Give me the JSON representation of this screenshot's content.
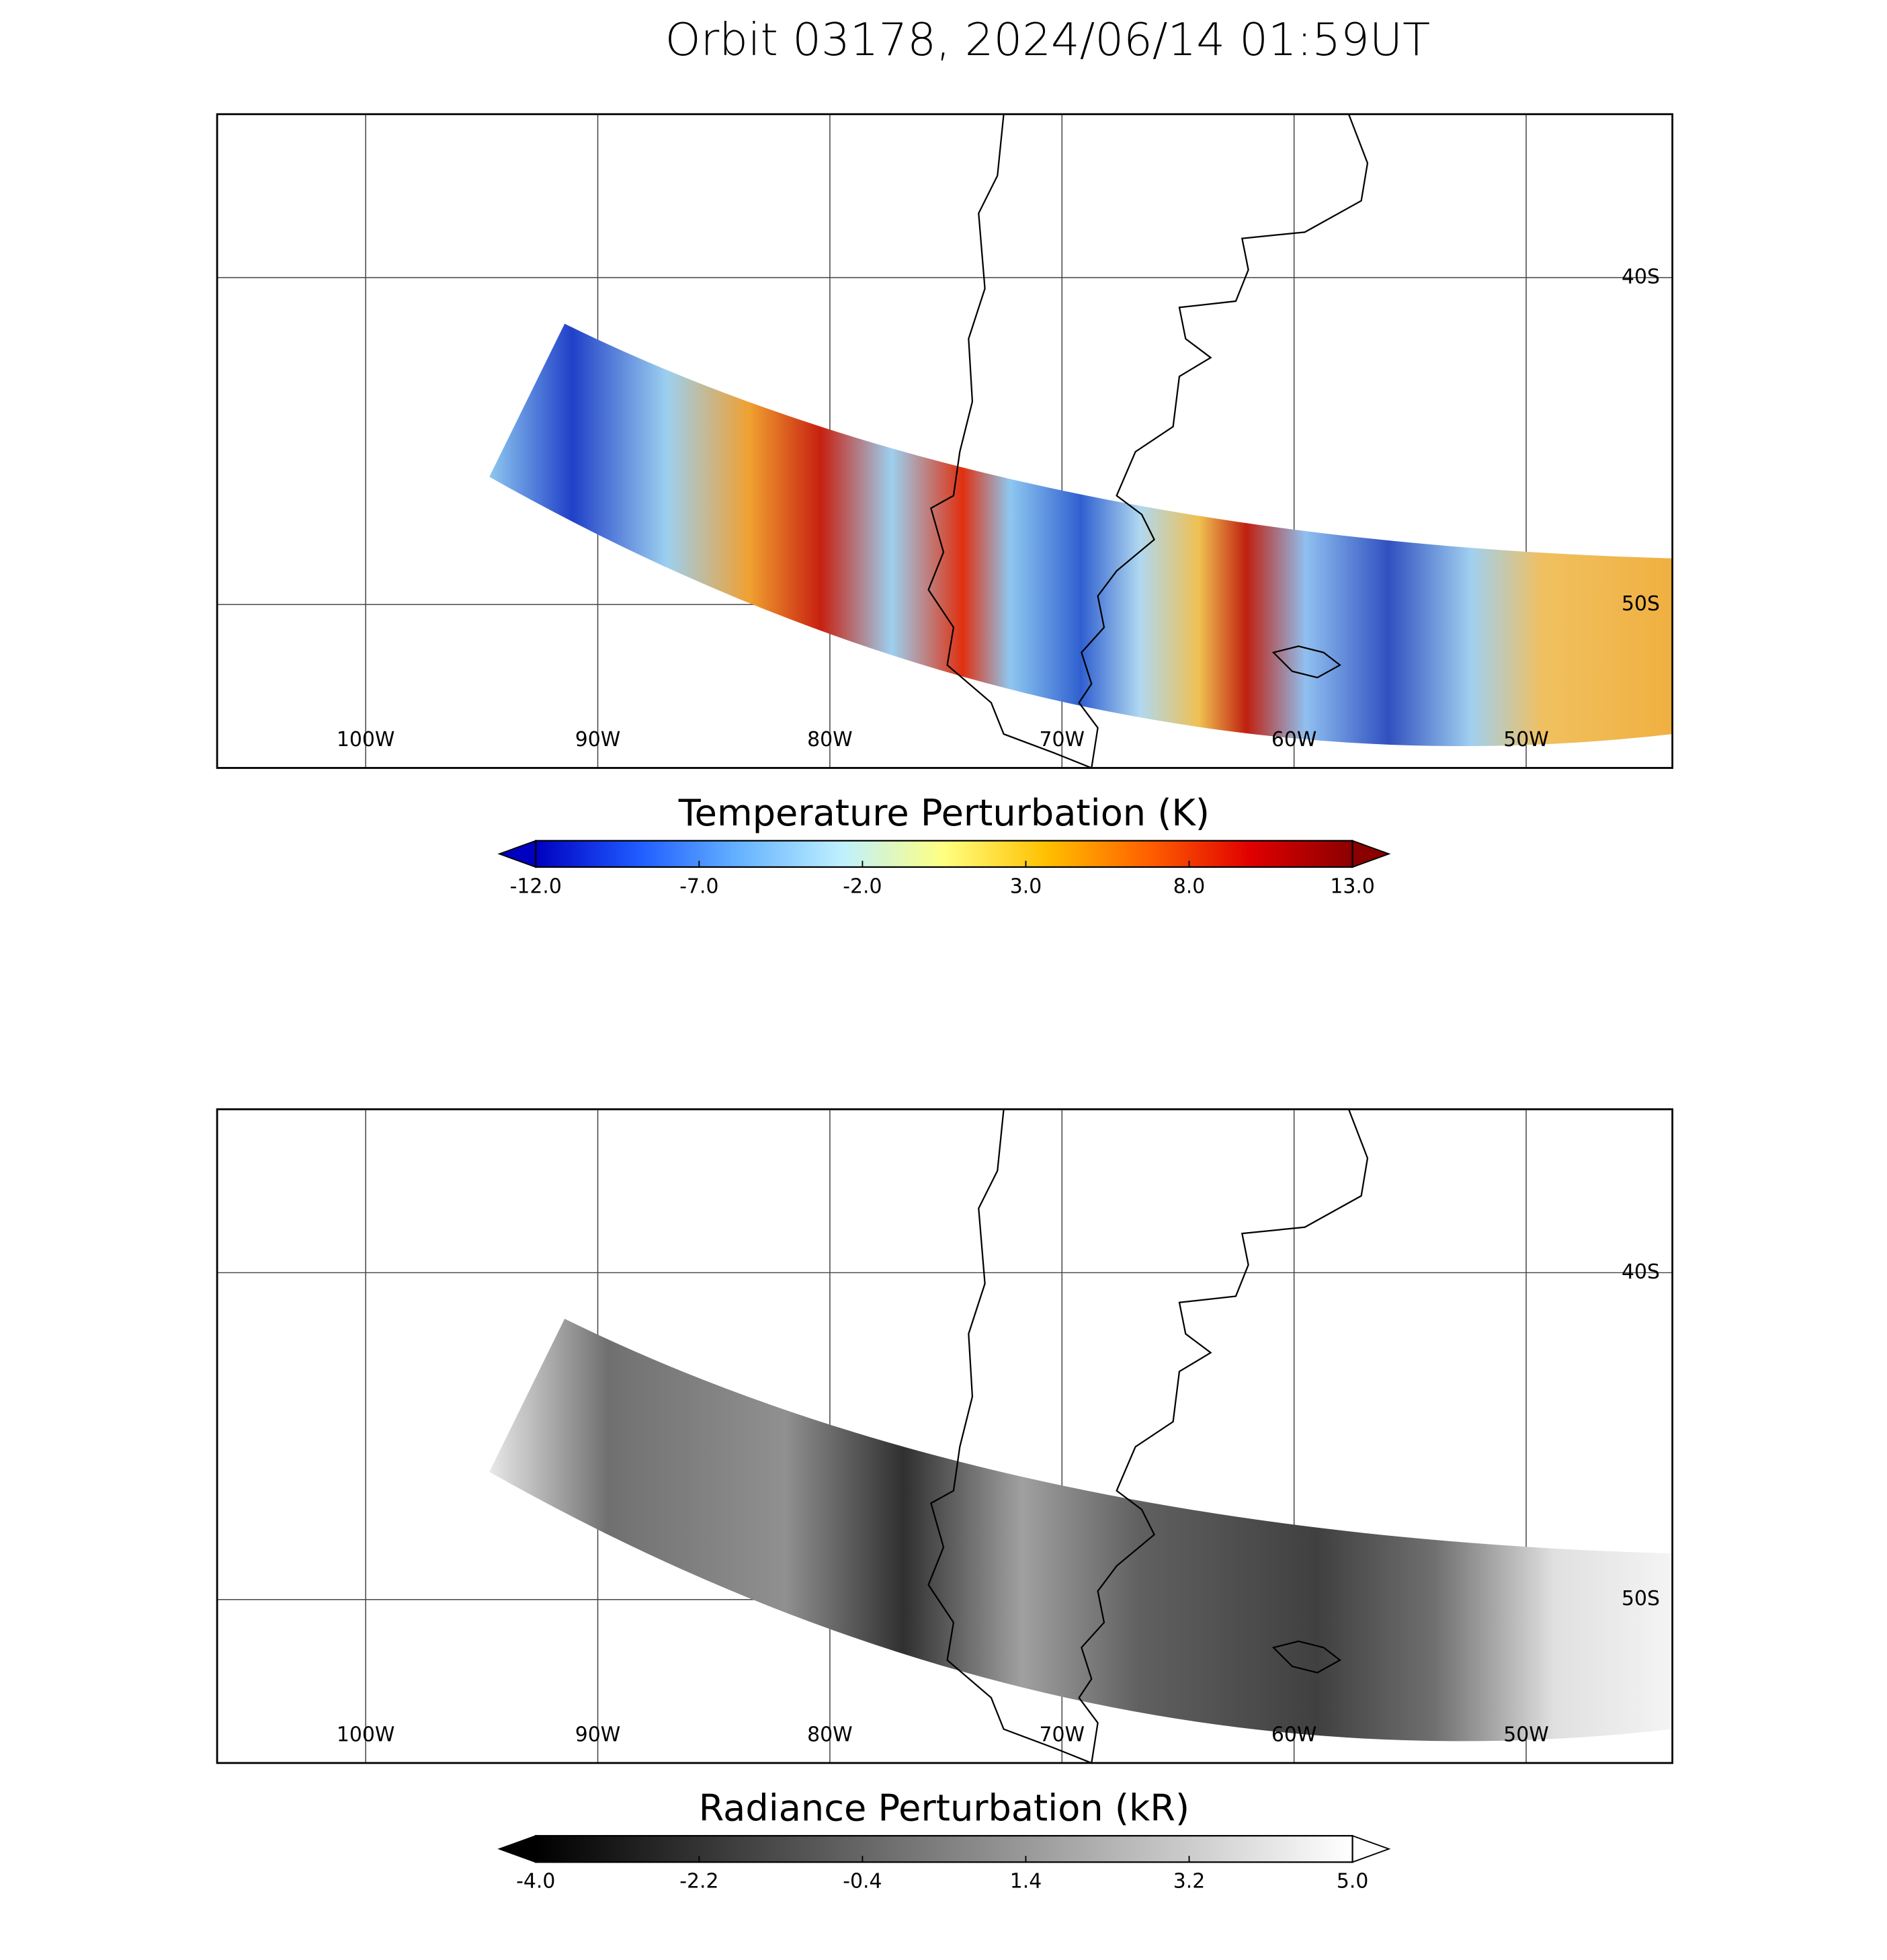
{
  "title": "Orbit 03178, 2024/06/14 01:59UT",
  "panels": [
    {
      "lon_range": [
        -106.4,
        -43.7
      ],
      "lat_range": [
        -55,
        -35
      ],
      "lon_ticks": [
        {
          "value": -100,
          "label": "100W"
        },
        {
          "value": -90,
          "label": "90W"
        },
        {
          "value": -80,
          "label": "80W"
        },
        {
          "value": -70,
          "label": "70W"
        },
        {
          "value": -60,
          "label": "60W"
        },
        {
          "value": -50,
          "label": "50W"
        }
      ],
      "lat_ticks": [
        {
          "value": -40,
          "label": "40S"
        },
        {
          "value": -50,
          "label": "50S"
        }
      ],
      "colorbar": {
        "title": "Temperature Perturbation (K)",
        "range": [
          -12,
          13
        ],
        "colors": [
          "#0000c0",
          "#1f5bff",
          "#66b3ff",
          "#bff0ff",
          "#ffff80",
          "#ffc000",
          "#ff6000",
          "#e00000",
          "#8b0000"
        ],
        "ticks": [
          {
            "value": -12,
            "label": "-12.0"
          },
          {
            "value": -7,
            "label": "-7.0"
          },
          {
            "value": -2,
            "label": "-2.0"
          },
          {
            "value": 3,
            "label": "3.0"
          },
          {
            "value": 8,
            "label": "8.0"
          },
          {
            "value": 13,
            "label": "13.0"
          }
        ]
      }
    },
    {
      "lon_range": [
        -106.4,
        -43.7
      ],
      "lat_range": [
        -55,
        -35
      ],
      "lon_ticks": [
        {
          "value": -100,
          "label": "100W"
        },
        {
          "value": -90,
          "label": "90W"
        },
        {
          "value": -80,
          "label": "80W"
        },
        {
          "value": -70,
          "label": "70W"
        },
        {
          "value": -60,
          "label": "60W"
        },
        {
          "value": -50,
          "label": "50W"
        }
      ],
      "lat_ticks": [
        {
          "value": -40,
          "label": "40S"
        },
        {
          "value": -50,
          "label": "50S"
        }
      ],
      "colorbar": {
        "title": "Radiance Perturbation (kR)",
        "range": [
          -4,
          5
        ],
        "colors": [
          "#000000",
          "#ffffff"
        ],
        "ticks": [
          {
            "value": -4,
            "label": "-4.0"
          },
          {
            "value": -2.2,
            "label": "-2.2"
          },
          {
            "value": -0.4,
            "label": "-0.4"
          },
          {
            "value": 1.4,
            "label": "1.4"
          },
          {
            "value": 3.2,
            "label": "3.2"
          },
          {
            "value": 5,
            "label": "5.0"
          }
        ]
      }
    }
  ]
}
